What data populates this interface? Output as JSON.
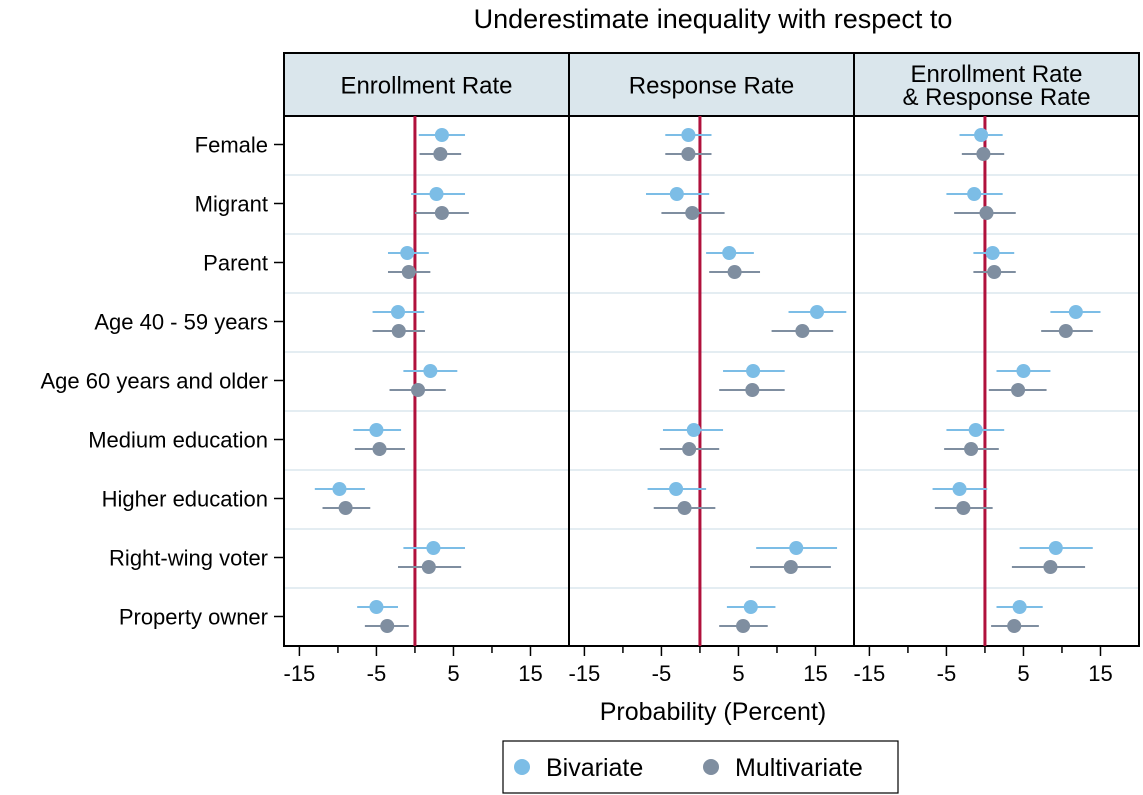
{
  "chart_data": {
    "type": "scatter",
    "title": "Underestimate inequality with respect to",
    "xlabel": "Probability (Percent)",
    "xlim": [
      -17,
      20
    ],
    "xticks": [
      -15,
      -5,
      5,
      15
    ],
    "xtick_labels": [
      "-15",
      "-5",
      "5",
      "15"
    ],
    "reference_line": 0,
    "legend_position": "bottom",
    "colors": {
      "bivariate": "#7cbde6",
      "multivariate": "#7f8ea0",
      "reference": "#b0113c"
    },
    "categories": [
      "Female",
      "Migrant",
      "Parent",
      "Age 40 - 59 years",
      "Age 60 years and older",
      "Medium education",
      "Higher education",
      "Right-wing voter",
      "Property owner"
    ],
    "panels": [
      {
        "title_lines": [
          "Enrollment Rate"
        ],
        "series": [
          {
            "name": "Bivariate",
            "estimates": [
              3.5,
              2.8,
              -1.0,
              -2.2,
              2.0,
              -5.0,
              -9.8,
              2.4,
              -5.0
            ],
            "ci_low": [
              0.5,
              -0.5,
              -3.5,
              -5.5,
              -1.5,
              -8.0,
              -13.0,
              -1.5,
              -7.5
            ],
            "ci_high": [
              6.5,
              6.5,
              1.8,
              1.2,
              5.5,
              -1.8,
              -6.5,
              6.5,
              -2.2
            ]
          },
          {
            "name": "Multivariate",
            "estimates": [
              3.3,
              3.5,
              -0.8,
              -2.1,
              0.4,
              -4.6,
              -9.0,
              1.8,
              -3.6
            ],
            "ci_low": [
              0.6,
              0.0,
              -3.5,
              -5.5,
              -3.3,
              -7.8,
              -12.0,
              -2.2,
              -6.5
            ],
            "ci_high": [
              6.0,
              7.0,
              2.0,
              1.3,
              4.0,
              -1.3,
              -5.8,
              6.0,
              -0.8
            ]
          }
        ]
      },
      {
        "title_lines": [
          "Response Rate"
        ],
        "series": [
          {
            "name": "Bivariate",
            "estimates": [
              -1.5,
              -3.0,
              3.8,
              15.2,
              6.9,
              -0.8,
              -3.1,
              12.5,
              6.6
            ],
            "ci_low": [
              -4.5,
              -7.0,
              0.8,
              11.5,
              3.0,
              -4.8,
              -6.8,
              7.3,
              3.5
            ],
            "ci_high": [
              1.5,
              1.2,
              7.0,
              19.0,
              11.0,
              3.0,
              0.8,
              17.8,
              9.8
            ]
          },
          {
            "name": "Multivariate",
            "estimates": [
              -1.5,
              -1.0,
              4.5,
              13.3,
              6.8,
              -1.4,
              -2.0,
              11.8,
              5.6
            ],
            "ci_low": [
              -4.5,
              -5.0,
              1.2,
              9.3,
              2.5,
              -5.2,
              -6.0,
              6.5,
              2.5
            ],
            "ci_high": [
              1.5,
              3.2,
              7.8,
              17.3,
              11.0,
              2.5,
              2.0,
              17.0,
              8.8
            ]
          }
        ]
      },
      {
        "title_lines": [
          "Enrollment Rate",
          "& Response Rate"
        ],
        "series": [
          {
            "name": "Bivariate",
            "estimates": [
              -0.5,
              -1.4,
              1.0,
              11.8,
              5.0,
              -1.2,
              -3.3,
              9.2,
              4.5
            ],
            "ci_low": [
              -3.3,
              -5.0,
              -1.5,
              8.5,
              1.5,
              -5.0,
              -6.8,
              4.5,
              1.5
            ],
            "ci_high": [
              2.3,
              2.3,
              3.8,
              15.0,
              8.5,
              2.5,
              0.3,
              14.0,
              7.5
            ]
          },
          {
            "name": "Multivariate",
            "estimates": [
              -0.2,
              0.2,
              1.2,
              10.5,
              4.3,
              -1.8,
              -2.8,
              8.5,
              3.8
            ],
            "ci_low": [
              -3.0,
              -4.0,
              -1.5,
              7.3,
              0.5,
              -5.3,
              -6.5,
              3.5,
              0.8
            ],
            "ci_high": [
              2.5,
              4.0,
              4.0,
              14.0,
              8.0,
              1.8,
              1.0,
              13.0,
              7.0
            ]
          }
        ]
      }
    ]
  }
}
